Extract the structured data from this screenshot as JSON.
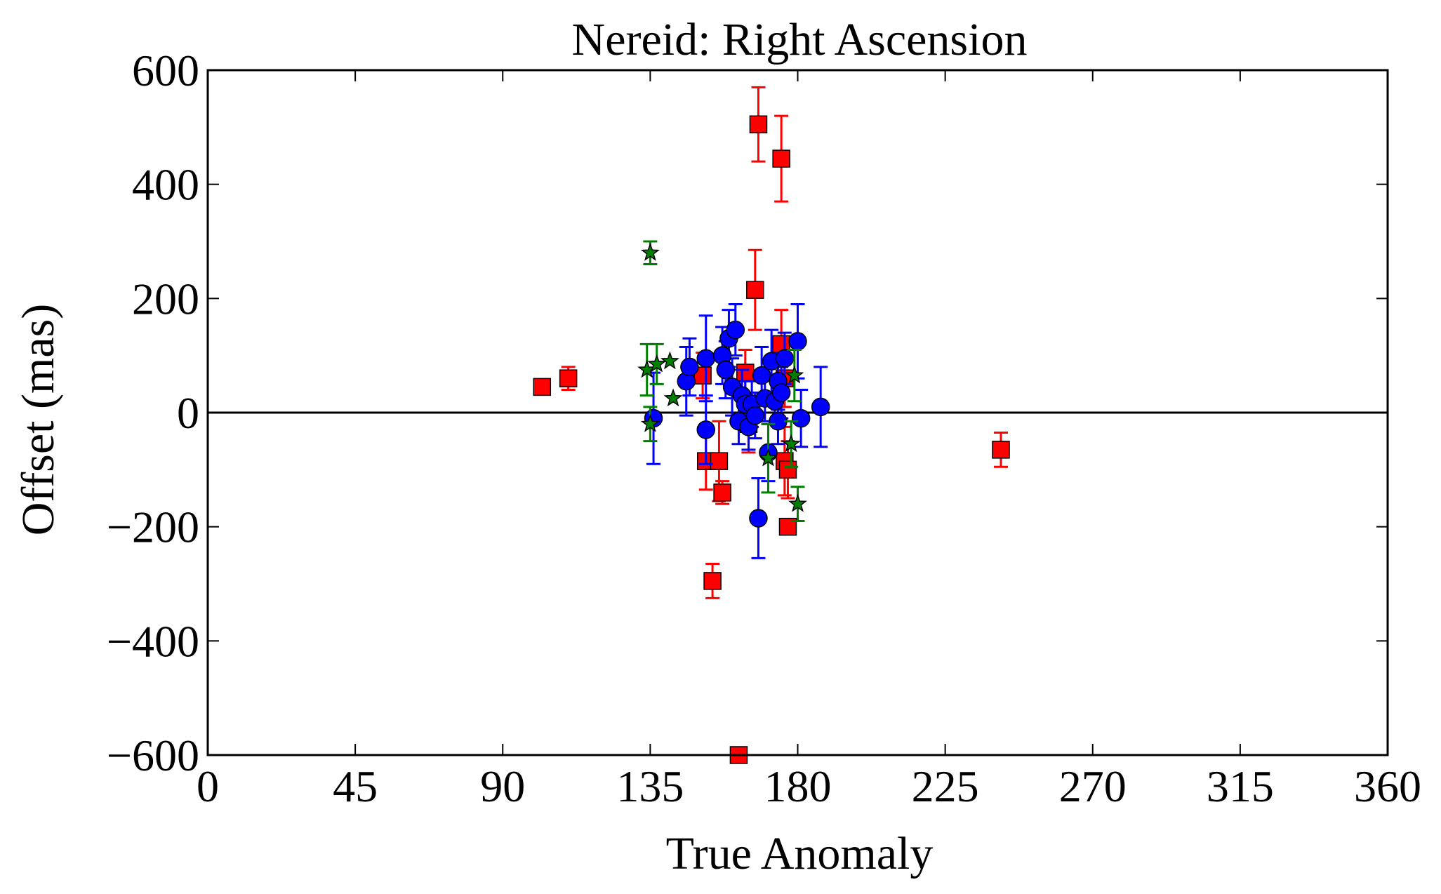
{
  "chart_data": {
    "type": "scatter",
    "title": "Nereid: Right Ascension",
    "xlabel": "True Anomaly",
    "ylabel": "Offset (mas)",
    "xlim": [
      0,
      360
    ],
    "ylim": [
      -600,
      600
    ],
    "xticks": [
      0,
      45,
      90,
      135,
      180,
      225,
      270,
      315,
      360
    ],
    "yticks": [
      -600,
      -400,
      -200,
      0,
      200,
      400,
      600
    ],
    "xtick_labels": [
      "0",
      "45",
      "90",
      "135",
      "180",
      "225",
      "270",
      "315",
      "360"
    ],
    "ytick_labels": [
      "−600",
      "−400",
      "−200",
      "0",
      "200",
      "400",
      "600"
    ],
    "zero_line": true,
    "grid": false,
    "legend": "none",
    "series": [
      {
        "marker": "square",
        "color": "#ff0000",
        "points": [
          {
            "x": 102,
            "y": 45,
            "err": 0
          },
          {
            "x": 110,
            "y": 60,
            "err": 20
          },
          {
            "x": 151,
            "y": 65,
            "err": 40
          },
          {
            "x": 152,
            "y": -85,
            "err": 50
          },
          {
            "x": 154,
            "y": -295,
            "err": 30
          },
          {
            "x": 156,
            "y": -85,
            "err": 70
          },
          {
            "x": 157,
            "y": -140,
            "err": 20
          },
          {
            "x": 162,
            "y": -600,
            "err": 0
          },
          {
            "x": 164,
            "y": 70,
            "err": 40
          },
          {
            "x": 165,
            "y": -20,
            "err": 50
          },
          {
            "x": 167,
            "y": 215,
            "err": 70
          },
          {
            "x": 168,
            "y": 505,
            "err": 65
          },
          {
            "x": 175,
            "y": 445,
            "err": 75
          },
          {
            "x": 175,
            "y": 120,
            "err": 60
          },
          {
            "x": 176,
            "y": 60,
            "err": 50
          },
          {
            "x": 176,
            "y": -85,
            "err": 60
          },
          {
            "x": 177,
            "y": -100,
            "err": 50
          },
          {
            "x": 177,
            "y": -200,
            "err": 0
          },
          {
            "x": 242,
            "y": -65,
            "err": 30
          }
        ]
      },
      {
        "marker": "circle",
        "color": "#0000ff",
        "points": [
          {
            "x": 136,
            "y": -10,
            "err": 80
          },
          {
            "x": 146,
            "y": 55,
            "err": 60
          },
          {
            "x": 147,
            "y": 80,
            "err": 50
          },
          {
            "x": 152,
            "y": 95,
            "err": 75
          },
          {
            "x": 152,
            "y": -30,
            "err": 60
          },
          {
            "x": 157,
            "y": 100,
            "err": 50
          },
          {
            "x": 158,
            "y": 75,
            "err": 50
          },
          {
            "x": 159,
            "y": 130,
            "err": 50
          },
          {
            "x": 160,
            "y": 45,
            "err": 50
          },
          {
            "x": 161,
            "y": 145,
            "err": 45
          },
          {
            "x": 162,
            "y": -15,
            "err": 40
          },
          {
            "x": 163,
            "y": 30,
            "err": 45
          },
          {
            "x": 164,
            "y": 15,
            "err": 40
          },
          {
            "x": 165,
            "y": -25,
            "err": 40
          },
          {
            "x": 166,
            "y": 15,
            "err": 40
          },
          {
            "x": 167,
            "y": -5,
            "err": 40
          },
          {
            "x": 168,
            "y": -185,
            "err": 70
          },
          {
            "x": 169,
            "y": 65,
            "err": 50
          },
          {
            "x": 170,
            "y": 25,
            "err": 40
          },
          {
            "x": 171,
            "y": -70,
            "err": 50
          },
          {
            "x": 172,
            "y": 90,
            "err": 55
          },
          {
            "x": 173,
            "y": 20,
            "err": 40
          },
          {
            "x": 174,
            "y": -15,
            "err": 40
          },
          {
            "x": 174,
            "y": 55,
            "err": 50
          },
          {
            "x": 175,
            "y": 35,
            "err": 45
          },
          {
            "x": 176,
            "y": 95,
            "err": 45
          },
          {
            "x": 180,
            "y": 125,
            "err": 65
          },
          {
            "x": 181,
            "y": -10,
            "err": 50
          },
          {
            "x": 187,
            "y": 10,
            "err": 70
          }
        ]
      },
      {
        "marker": "star",
        "color": "#008000",
        "points": [
          {
            "x": 134,
            "y": 75,
            "err": 45
          },
          {
            "x": 135,
            "y": 280,
            "err": 20
          },
          {
            "x": 135,
            "y": -20,
            "err": 30
          },
          {
            "x": 137,
            "y": 85,
            "err": 35
          },
          {
            "x": 141,
            "y": 90,
            "err": 0
          },
          {
            "x": 142,
            "y": 25,
            "err": 0
          },
          {
            "x": 171,
            "y": -80,
            "err": 60
          },
          {
            "x": 178,
            "y": -55,
            "err": 40
          },
          {
            "x": 179,
            "y": 65,
            "err": 45
          },
          {
            "x": 180,
            "y": -160,
            "err": 30
          }
        ]
      }
    ]
  }
}
